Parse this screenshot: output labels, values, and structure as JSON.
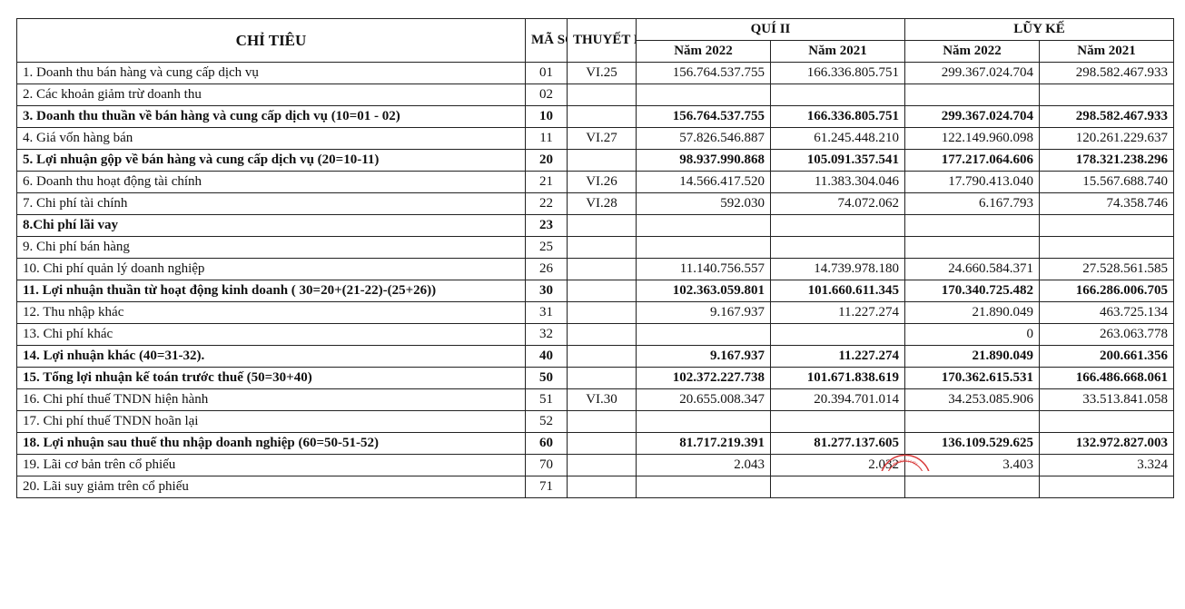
{
  "headers": {
    "chi_tieu": "CHỈ TIÊU",
    "ma_so": "MÃ SỐ",
    "thuyet_minh": "THUYẾT MINH",
    "qui_ii": "QUÍ II",
    "luy_ke": "LŨY KẾ",
    "nam_2022": "Năm 2022",
    "nam_2021": "Năm 2021"
  },
  "rows": [
    {
      "label": "1. Doanh thu bán hàng và cung cấp dịch vụ",
      "code": "01",
      "note": "VI.25",
      "q2_2022": "156.764.537.755",
      "q2_2021": "166.336.805.751",
      "lk_2022": "299.367.024.704",
      "lk_2021": "298.582.467.933",
      "bold": false
    },
    {
      "label": "2. Các khoản giảm trừ doanh thu",
      "code": "02",
      "note": "",
      "q2_2022": "",
      "q2_2021": "",
      "lk_2022": "",
      "lk_2021": "",
      "bold": false
    },
    {
      "label": "3. Doanh thu thuần về bán hàng và cung cấp dịch vụ (10=01 - 02)",
      "code": "10",
      "note": "",
      "q2_2022": "156.764.537.755",
      "q2_2021": "166.336.805.751",
      "lk_2022": "299.367.024.704",
      "lk_2021": "298.582.467.933",
      "bold": true
    },
    {
      "label": "4. Giá vốn hàng bán",
      "code": "11",
      "note": "VI.27",
      "q2_2022": "57.826.546.887",
      "q2_2021": "61.245.448.210",
      "lk_2022": "122.149.960.098",
      "lk_2021": "120.261.229.637",
      "bold": false
    },
    {
      "label": "5. Lợi nhuận gộp về bán hàng và cung cấp dịch vụ (20=10-11)",
      "code": "20",
      "note": "",
      "q2_2022": "98.937.990.868",
      "q2_2021": "105.091.357.541",
      "lk_2022": "177.217.064.606",
      "lk_2021": "178.321.238.296",
      "bold": true
    },
    {
      "label": "6. Doanh thu hoạt động tài chính",
      "code": "21",
      "note": "VI.26",
      "q2_2022": "14.566.417.520",
      "q2_2021": "11.383.304.046",
      "lk_2022": "17.790.413.040",
      "lk_2021": "15.567.688.740",
      "bold": false
    },
    {
      "label": "7. Chi phí tài chính",
      "code": "22",
      "note": "VI.28",
      "q2_2022": "592.030",
      "q2_2021": "74.072.062",
      "lk_2022": "6.167.793",
      "lk_2021": "74.358.746",
      "bold": false
    },
    {
      "label": "8.Chi phí lãi vay",
      "code": "23",
      "note": "",
      "q2_2022": "",
      "q2_2021": "",
      "lk_2022": "",
      "lk_2021": "",
      "bold": true
    },
    {
      "label": "9. Chi phí bán hàng",
      "code": "25",
      "note": "",
      "q2_2022": "",
      "q2_2021": "",
      "lk_2022": "",
      "lk_2021": "",
      "bold": false
    },
    {
      "label": "10. Chi phí quản lý doanh nghiệp",
      "code": "26",
      "note": "",
      "q2_2022": "11.140.756.557",
      "q2_2021": "14.739.978.180",
      "lk_2022": "24.660.584.371",
      "lk_2021": "27.528.561.585",
      "bold": false
    },
    {
      "label": "11. Lợi nhuận thuần từ hoạt động kinh doanh ( 30=20+(21-22)-(25+26))",
      "code": "30",
      "note": "",
      "q2_2022": "102.363.059.801",
      "q2_2021": "101.660.611.345",
      "lk_2022": "170.340.725.482",
      "lk_2021": "166.286.006.705",
      "bold": true
    },
    {
      "label": "12. Thu nhập khác",
      "code": "31",
      "note": "",
      "q2_2022": "9.167.937",
      "q2_2021": "11.227.274",
      "lk_2022": "21.890.049",
      "lk_2021": "463.725.134",
      "bold": false
    },
    {
      "label": "13. Chi phí khác",
      "code": "32",
      "note": "",
      "q2_2022": "",
      "q2_2021": "",
      "lk_2022": "0",
      "lk_2021": "263.063.778",
      "bold": false
    },
    {
      "label": "14. Lợi nhuận khác (40=31-32).",
      "code": "40",
      "note": "",
      "q2_2022": "9.167.937",
      "q2_2021": "11.227.274",
      "lk_2022": "21.890.049",
      "lk_2021": "200.661.356",
      "bold": true
    },
    {
      "label": "15. Tổng lợi nhuận kế toán trước thuế (50=30+40)",
      "code": "50",
      "note": "",
      "q2_2022": "102.372.227.738",
      "q2_2021": "101.671.838.619",
      "lk_2022": "170.362.615.531",
      "lk_2021": "166.486.668.061",
      "bold": true
    },
    {
      "label": "16. Chi phí thuế TNDN hiện hành",
      "code": "51",
      "note": "VI.30",
      "q2_2022": "20.655.008.347",
      "q2_2021": "20.394.701.014",
      "lk_2022": "34.253.085.906",
      "lk_2021": "33.513.841.058",
      "bold": false
    },
    {
      "label": "17. Chi phí thuế TNDN hoãn lại",
      "code": "52",
      "note": "",
      "q2_2022": "",
      "q2_2021": "",
      "lk_2022": "",
      "lk_2021": "",
      "bold": false
    },
    {
      "label": "18. Lợi nhuận sau thuế thu nhập doanh nghiệp (60=50-51-52)",
      "code": "60",
      "note": "",
      "q2_2022": "81.717.219.391",
      "q2_2021": "81.277.137.605",
      "lk_2022": "136.109.529.625",
      "lk_2021": "132.972.827.003",
      "bold": true
    },
    {
      "label": "19.  Lãi cơ bản trên cổ phiếu",
      "code": "70",
      "note": "",
      "q2_2022": "2.043",
      "q2_2021": "2.032",
      "lk_2022": "3.403",
      "lk_2021": "3.324",
      "bold": false
    },
    {
      "label": "20. Lãi suy giảm trên cổ phiếu",
      "code": "71",
      "note": "",
      "q2_2022": "",
      "q2_2021": "",
      "lk_2022": "",
      "lk_2021": "",
      "bold": false
    }
  ],
  "stamp_color": "#d83a3a"
}
